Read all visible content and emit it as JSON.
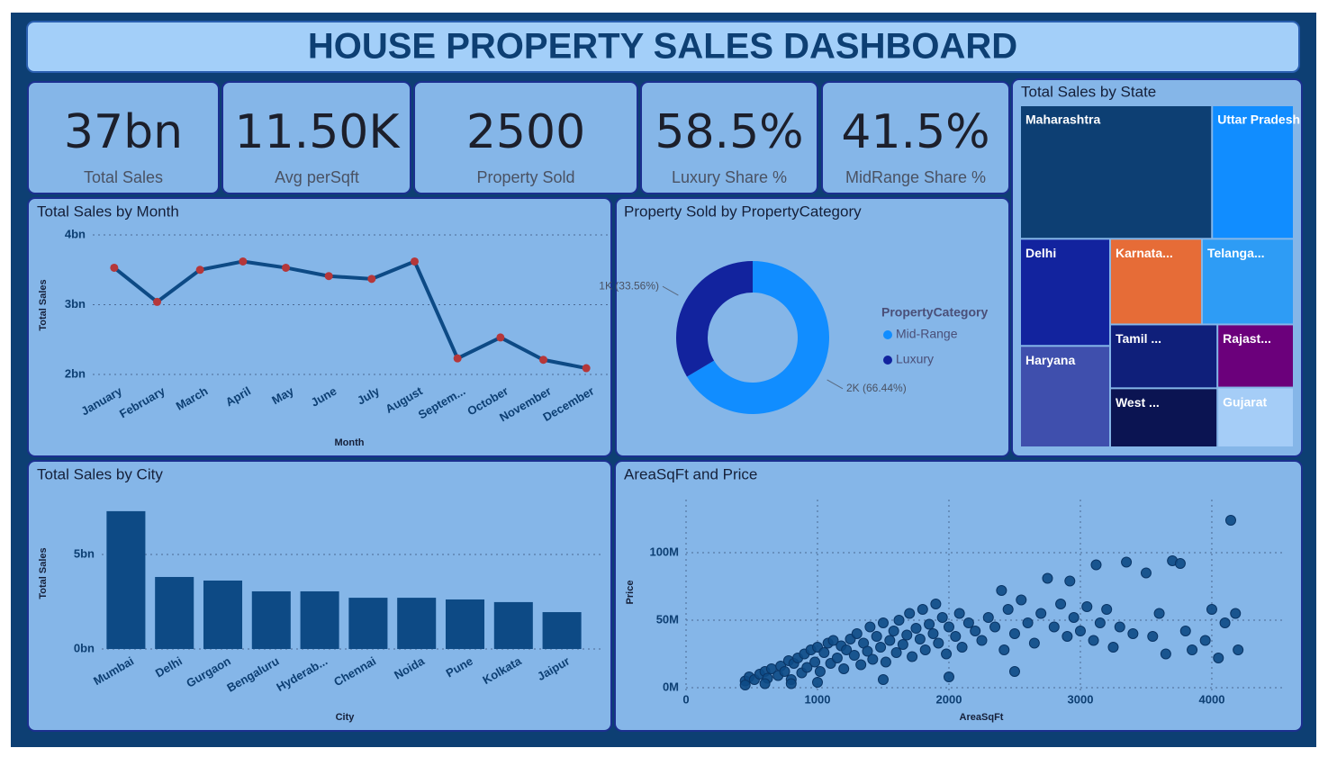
{
  "header": {
    "title": "HOUSE PROPERTY SALES DASHBOARD"
  },
  "kpis": [
    {
      "value": "37bn",
      "label": "Total Sales"
    },
    {
      "value": "11.50K",
      "label": "Avg perSqft"
    },
    {
      "value": "2500",
      "label": "Property Sold"
    },
    {
      "value": "58.5%",
      "label": "Luxury Share %"
    },
    {
      "value": "41.5%",
      "label": "MidRange Share %"
    }
  ],
  "chart_data": [
    {
      "type": "line",
      "title": "Total Sales by Month",
      "x_label": "Month",
      "y_label": "Total Sales",
      "categories": [
        "January",
        "February",
        "March",
        "April",
        "May",
        "June",
        "July",
        "August",
        "Septem...",
        "October",
        "November",
        "December"
      ],
      "values": [
        3.53,
        3.04,
        3.5,
        3.62,
        3.53,
        3.41,
        3.37,
        3.62,
        2.23,
        2.53,
        2.21,
        2.09
      ],
      "color": "#0d4a85",
      "marker_color": "#b5373a",
      "ylim": [
        1.9,
        4.15
      ],
      "yticks": [
        {
          "value": 2,
          "label": "2bn"
        },
        {
          "value": 3,
          "label": "3bn"
        },
        {
          "value": 4,
          "label": "4bn"
        }
      ],
      "grid": true
    },
    {
      "type": "donut",
      "title": "Property Sold by PropertyCategory",
      "legend_title": "PropertyCategory",
      "categories": [
        "Mid-Range",
        "Luxury"
      ],
      "values": [
        1661,
        839
      ],
      "value_labels": [
        "2K (66.44%)",
        "1K (33.56%)"
      ],
      "colors": [
        "#118dff",
        "#12239e"
      ]
    },
    {
      "type": "treemap",
      "title": "Total Sales by State",
      "categories": [
        "Maharashtra",
        "Uttar Pradesh",
        "Delhi",
        "Haryana",
        "Karnata...",
        "Telanga...",
        "Tamil ...",
        "West ...",
        "Rajast...",
        "Gujarat"
      ],
      "values": [
        10.1,
        4.3,
        3.8,
        3.6,
        3.1,
        3.1,
        2.7,
        2.5,
        1.9,
        1.8
      ],
      "colors": [
        "#0d3f73",
        "#118dff",
        "#12239e",
        "#3f4fad",
        "#e66c37",
        "#2e9cf5",
        "#0f1f7a",
        "#0b1452",
        "#6b007b",
        "#a5cdf7"
      ]
    },
    {
      "type": "bar",
      "title": "Total Sales by City",
      "x_label": "City",
      "y_label": "Total Sales",
      "categories": [
        "Mumbai",
        "Delhi",
        "Gurgaon",
        "Bengaluru",
        "Hyderab...",
        "Chennai",
        "Noida",
        "Pune",
        "Kolkata",
        "Jaipur"
      ],
      "values": [
        7.29,
        3.81,
        3.62,
        3.05,
        3.05,
        2.71,
        2.71,
        2.62,
        2.48,
        1.95
      ],
      "color": "#0d4a85",
      "ylim": [
        0,
        7.5
      ],
      "yticks": [
        {
          "value": 0,
          "label": "0bn"
        },
        {
          "value": 5,
          "label": "5bn"
        }
      ],
      "grid": true
    },
    {
      "type": "scatter",
      "title": "AreaSqFt and Price",
      "x_label": "AreaSqFt",
      "y_label": "Price",
      "x": [
        450,
        480,
        520,
        560,
        600,
        620,
        650,
        700,
        720,
        750,
        780,
        800,
        820,
        850,
        880,
        900,
        920,
        950,
        980,
        1000,
        1020,
        1050,
        1080,
        1100,
        1120,
        1150,
        1180,
        1200,
        1220,
        1250,
        1280,
        1300,
        1330,
        1350,
        1380,
        1400,
        1420,
        1450,
        1480,
        1500,
        1520,
        1550,
        1580,
        1600,
        1620,
        1650,
        1680,
        1700,
        1720,
        1750,
        1780,
        1800,
        1820,
        1850,
        1880,
        1900,
        1920,
        1950,
        1980,
        2000,
        2050,
        2080,
        2100,
        2150,
        2200,
        2250,
        2300,
        2350,
        2400,
        2420,
        2450,
        2500,
        2550,
        2600,
        2650,
        2700,
        2750,
        2800,
        2850,
        2900,
        2920,
        2950,
        3000,
        3050,
        3100,
        3120,
        3150,
        3200,
        3250,
        3300,
        3350,
        3400,
        3500,
        3550,
        3600,
        3650,
        3700,
        3760,
        3800,
        3850,
        3950,
        4000,
        4050,
        4100,
        4144,
        4180,
        4200,
        450,
        600,
        800,
        1000,
        1500,
        2000,
        2500
      ],
      "values": [
        5,
        8,
        6,
        10,
        12,
        7,
        14,
        9,
        16,
        12,
        20,
        6,
        18,
        22,
        11,
        25,
        15,
        28,
        19,
        30,
        12,
        26,
        33,
        18,
        35,
        22,
        31,
        14,
        28,
        36,
        24,
        40,
        17,
        33,
        27,
        45,
        21,
        38,
        30,
        48,
        19,
        35,
        42,
        26,
        50,
        32,
        39,
        55,
        23,
        44,
        36,
        58,
        28,
        47,
        40,
        62,
        33,
        52,
        25,
        45,
        38,
        55,
        30,
        48,
        42,
        35,
        52,
        45,
        72,
        28,
        58,
        40,
        65,
        48,
        33,
        55,
        81,
        45,
        62,
        38,
        79,
        52,
        42,
        60,
        35,
        91,
        48,
        58,
        30,
        45,
        93,
        40,
        85,
        38,
        55,
        25,
        94,
        92,
        42,
        28,
        35,
        58,
        22,
        48,
        124,
        55,
        28,
        2,
        3,
        3,
        4,
        6,
        8,
        12
      ],
      "color": "#0d4a85",
      "xlim": [
        0,
        4540
      ],
      "xticks": [
        0,
        1000,
        2000,
        3000,
        4000
      ],
      "ylim": [
        -4,
        136
      ],
      "yticks": [
        {
          "value": 0,
          "label": "0M"
        },
        {
          "value": 50,
          "label": "50M"
        },
        {
          "value": 100,
          "label": "100M"
        }
      ],
      "grid": true
    }
  ]
}
